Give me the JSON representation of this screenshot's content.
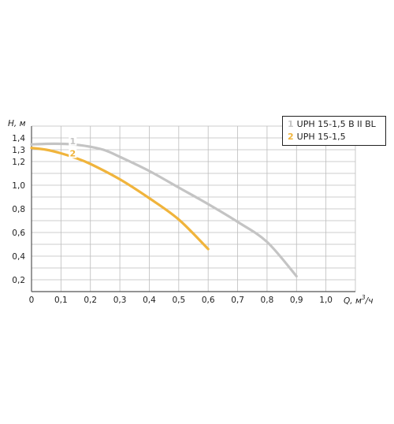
{
  "chart_data": {
    "type": "line",
    "title": "",
    "ylabel": "H, м",
    "xlabel": "Q, м³/ч",
    "xlabel_base": "Q, м",
    "xlabel_sup": "3",
    "xlabel_tail": "/ч",
    "xlim": [
      0,
      1.1
    ],
    "ylim": [
      0.1,
      1.5
    ],
    "x_ticks": [
      0,
      0.1,
      0.2,
      0.3,
      0.4,
      0.5,
      0.6,
      0.7,
      0.8,
      0.9,
      1.0
    ],
    "x_tick_labels": [
      "0",
      "0,1",
      "0,2",
      "0,3",
      "0,4",
      "0,5",
      "0,6",
      "0,7",
      "0,8",
      "0,9",
      "1,0"
    ],
    "y_ticks": [
      0.2,
      0.4,
      0.6,
      0.8,
      1.0,
      1.2,
      1.3,
      1.4
    ],
    "y_tick_labels": [
      "0,2",
      "0,4",
      "0,6",
      "0,8",
      "1,0",
      "1,2",
      "1,3",
      "1,4"
    ],
    "grid": true,
    "legend_position": "top-right",
    "series": [
      {
        "name": "UPH 15-1,5 B II BL",
        "number": "1",
        "color": "#c4c4c4",
        "x": [
          0,
          0.05,
          0.1,
          0.15,
          0.2,
          0.25,
          0.3,
          0.4,
          0.5,
          0.6,
          0.7,
          0.8,
          0.9
        ],
        "y": [
          1.345,
          1.35,
          1.35,
          1.343,
          1.325,
          1.295,
          1.24,
          1.12,
          0.98,
          0.84,
          0.69,
          0.52,
          0.23
        ],
        "label_at": [
          0.14,
          1.355
        ]
      },
      {
        "name": "UPH 15-1,5",
        "number": "2",
        "color": "#f0b43c",
        "x": [
          0,
          0.05,
          0.1,
          0.15,
          0.2,
          0.3,
          0.4,
          0.5,
          0.6
        ],
        "y": [
          1.315,
          1.3,
          1.27,
          1.23,
          1.18,
          1.05,
          0.89,
          0.71,
          0.46
        ],
        "label_at": [
          0.14,
          1.25
        ]
      }
    ]
  }
}
